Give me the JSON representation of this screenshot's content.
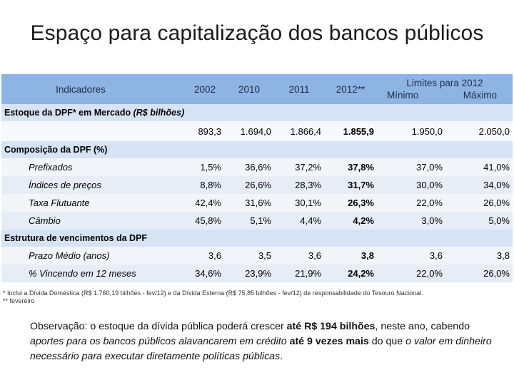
{
  "title": "Espaço para capitalização dos bancos públicos",
  "table": {
    "header": {
      "indicadores": "Indicadores",
      "years": [
        "2002",
        "2010",
        "2011",
        "2012**"
      ],
      "limites": "Limites para 2012",
      "minimo": "Mínimo",
      "maximo": "Máximo"
    },
    "section1": {
      "title_main": "Estoque da DPF* em Mercado ",
      "title_italic": "(R$ bilhões)",
      "values": [
        "893,3",
        "1.694,0",
        "1.866,4",
        "1.855,9",
        "1.950,0",
        "2.050,0"
      ]
    },
    "section2": {
      "title": "Composição da DPF (%)",
      "rows": [
        {
          "label": "Prefixados",
          "values": [
            "1,5%",
            "36,6%",
            "37,2%",
            "37,8%",
            "37,0%",
            "41,0%"
          ]
        },
        {
          "label": "Índices de preços",
          "values": [
            "8,8%",
            "26,6%",
            "28,3%",
            "31,7%",
            "30,0%",
            "34,0%"
          ]
        },
        {
          "label": "Taxa Flutuante",
          "values": [
            "42,4%",
            "31,6%",
            "30,1%",
            "26,3%",
            "22,0%",
            "26,0%"
          ]
        },
        {
          "label": "Câmbio",
          "values": [
            "45,8%",
            "5,1%",
            "4,4%",
            "4,2%",
            "3,0%",
            "5,0%"
          ]
        }
      ]
    },
    "section3": {
      "title": "Estrutura de vencimentos da DPF",
      "rows": [
        {
          "label": "Prazo Médio (anos)",
          "values": [
            "3,6",
            "3,5",
            "3,6",
            "3,8",
            "3,6",
            "3,8"
          ]
        },
        {
          "label": "% Vincendo em 12 meses",
          "values": [
            "34,6%",
            "23,9%",
            "21,9%",
            "24,2%",
            "22,0%",
            "26,0%"
          ]
        }
      ]
    }
  },
  "footnotes": [
    "* Inclui a Dívida Doméstica (R$ 1.760,19 bilhões - fev/12) e da Dívida Externa (R$ 75,85 bilhões - fev/12) de responsabilidade do Tesouro Nacional.",
    "** fevereiro"
  ],
  "observation": {
    "label": "Observação",
    "part1": ": o estoque da dívida pública poderá crescer ",
    "bold1": "até R$ 194 bilhões",
    "part2": ", neste ano, cabendo ",
    "italic1": "aportes para os bancos públicos alavancarem em crédito",
    "bold2": " até 9 vezes mais",
    "part3": " do que ",
    "italic2": "o valor em dinheiro necessário para executar diretamente políticas públicas",
    "end": "."
  }
}
